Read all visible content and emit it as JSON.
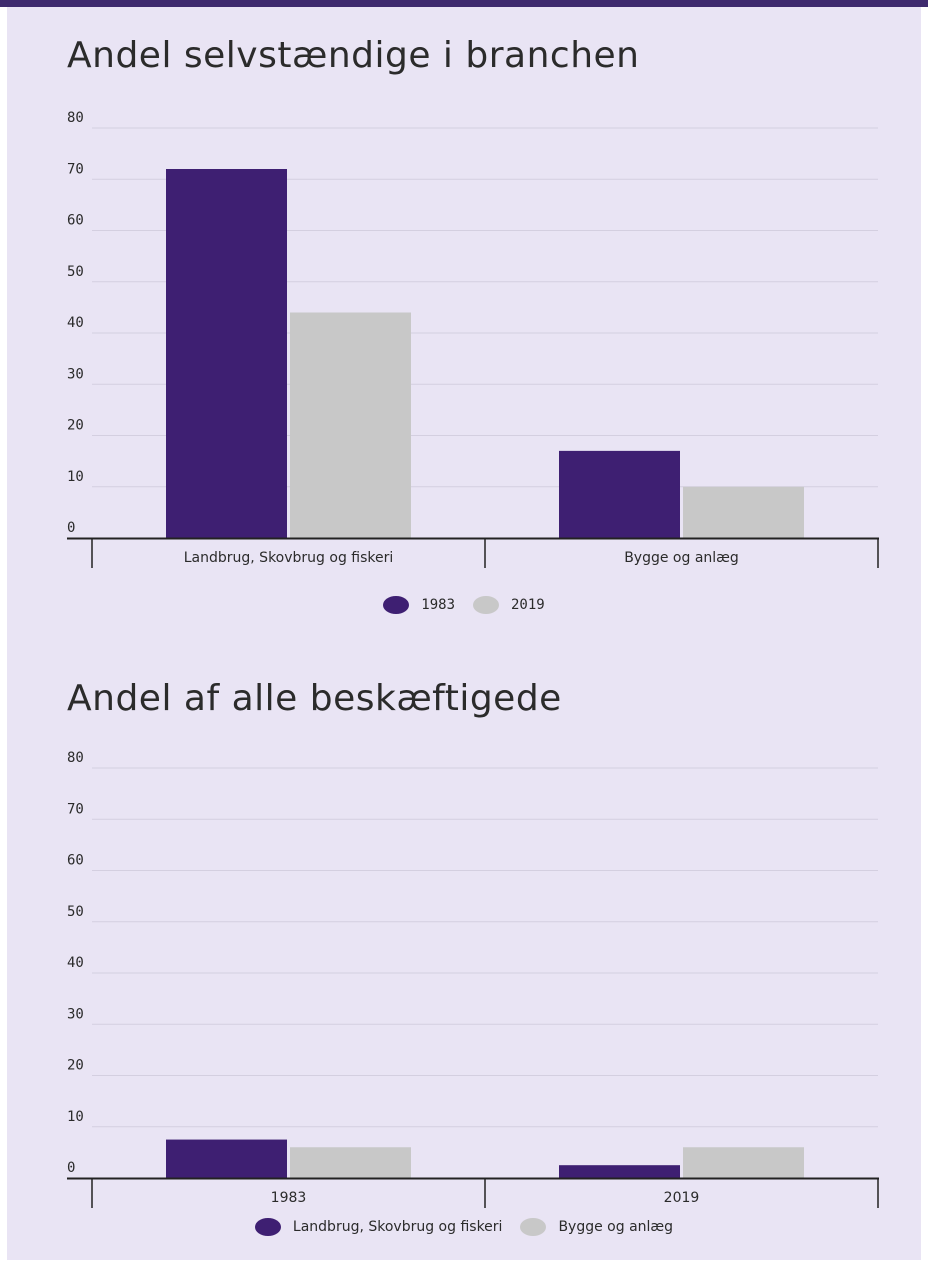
{
  "colors": {
    "primary": "#3e1f72",
    "secondary": "#c8c8c8",
    "gridline": "#d4cfe0",
    "axis": "#222222",
    "panel_background": "#e9e4f4",
    "top_bar": "#3e2a6e"
  },
  "chart_data": [
    {
      "type": "bar",
      "title": "Andel selvstændige i branchen",
      "categories": [
        "Landbrug, Skovbrug og fiskeri",
        "Bygge og anlæg"
      ],
      "series": [
        {
          "name": "1983",
          "values": [
            72,
            17
          ]
        },
        {
          "name": "2019",
          "values": [
            44,
            10
          ]
        }
      ],
      "ylim": [
        0,
        80
      ],
      "yticks": [
        0,
        10,
        20,
        30,
        40,
        50,
        60,
        70,
        80
      ],
      "grid": true,
      "legend_position": "bottom-center"
    },
    {
      "type": "bar",
      "title": "Andel af alle beskæftigede",
      "categories": [
        "1983",
        "2019"
      ],
      "series": [
        {
          "name": "Landbrug, Skovbrug og fiskeri",
          "values": [
            7.5,
            2.5
          ]
        },
        {
          "name": "Bygge og anlæg",
          "values": [
            6,
            6
          ]
        }
      ],
      "ylim": [
        0,
        80
      ],
      "yticks": [
        0,
        10,
        20,
        30,
        40,
        50,
        60,
        70,
        80
      ],
      "grid": true,
      "legend_position": "bottom-center"
    }
  ]
}
